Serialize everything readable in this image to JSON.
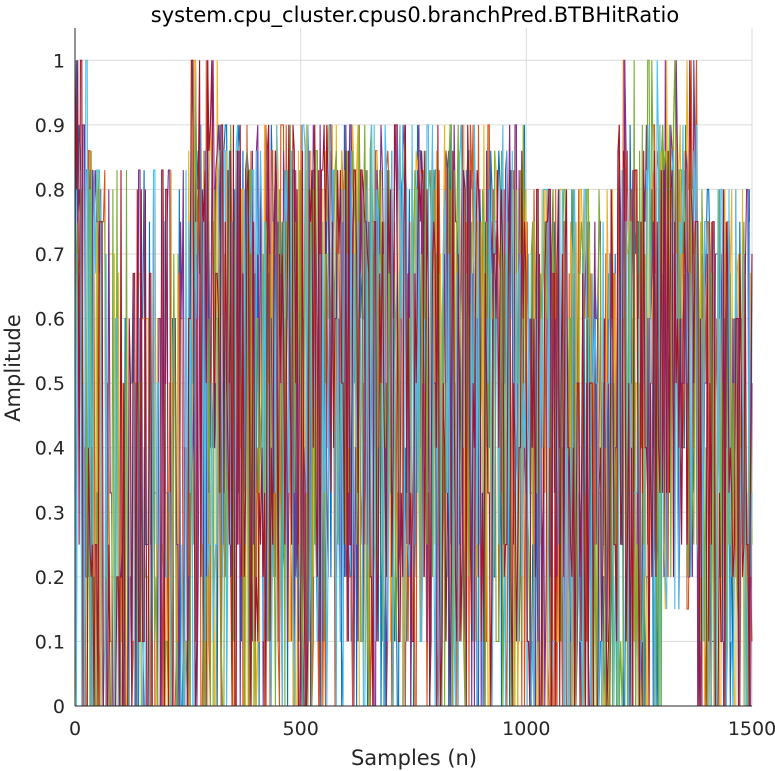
{
  "chart_data": {
    "type": "line",
    "title": "system.cpu_cluster.cpus0.branchPred.BTBHitRatio",
    "xlabel": "Samples (n)",
    "ylabel": "Amplitude",
    "xlim": [
      0,
      1500
    ],
    "ylim": [
      0,
      1.05
    ],
    "x_ticks": [
      0,
      500,
      1000,
      1500
    ],
    "y_ticks": [
      0,
      0.1,
      0.2,
      0.3,
      0.4,
      0.5,
      0.6,
      0.7,
      0.8,
      0.9,
      1
    ],
    "grid": true,
    "legend": "none",
    "colors": [
      "#0072BD",
      "#D95319",
      "#EDB120",
      "#7E2F8E",
      "#77AC30",
      "#4DBEEE",
      "#A2142F"
    ],
    "series_count": 7,
    "segments": [
      {
        "x": [
          0,
          40
        ],
        "y_min": 0,
        "y_max": 1.0,
        "density": 0.85
      },
      {
        "x": [
          40,
          250
        ],
        "y_min": 0,
        "y_max": 0.83,
        "density": 0.25
      },
      {
        "x": [
          250,
          320
        ],
        "y_min": 0,
        "y_max": 1.0,
        "density": 0.8
      },
      {
        "x": [
          320,
          1000
        ],
        "y_min": 0,
        "y_max": 0.93,
        "density": 0.95
      },
      {
        "x": [
          1000,
          1200
        ],
        "y_min": 0,
        "y_max": 0.8,
        "density": 0.7
      },
      {
        "x": [
          1200,
          1300
        ],
        "y_min": 0,
        "y_max": 1.0,
        "density": 0.75
      },
      {
        "x": [
          1300,
          1380
        ],
        "y_min": 0.15,
        "y_max": 1.0,
        "density": 0.95
      },
      {
        "x": [
          1380,
          1500
        ],
        "y_min": 0,
        "y_max": 0.8,
        "density": 0.8
      }
    ]
  }
}
